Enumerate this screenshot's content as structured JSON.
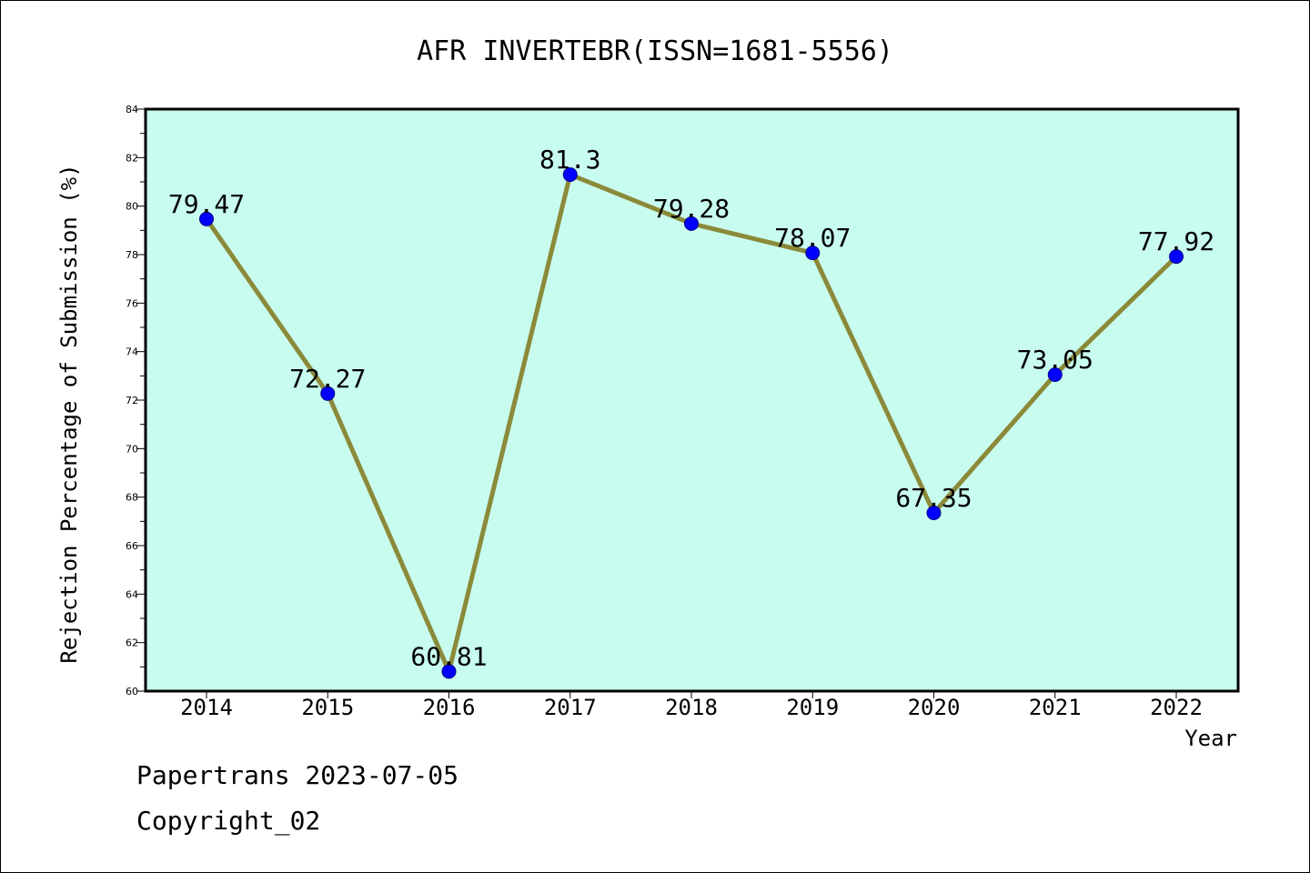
{
  "chart_data": {
    "type": "line",
    "title": "AFR INVERTEBR(ISSN=1681-5556)",
    "xlabel": "Year",
    "ylabel": "Rejection Percentage of Submission (%)",
    "categories": [
      "2014",
      "2015",
      "2016",
      "2017",
      "2018",
      "2019",
      "2020",
      "2021",
      "2022"
    ],
    "series": [
      {
        "values": [
          79.47,
          72.27,
          60.81,
          81.3,
          79.28,
          78.07,
          67.35,
          73.05,
          77.92
        ]
      }
    ],
    "data_labels": [
      "79.47",
      "72.27",
      "60.81",
      "81.3",
      "79.28",
      "78.07",
      "67.35",
      "73.05",
      "77.92"
    ],
    "ylim": [
      60,
      84
    ],
    "yticks": [
      60,
      62,
      64,
      66,
      68,
      70,
      72,
      74,
      76,
      78,
      80,
      82,
      84
    ],
    "grid": false,
    "colors": {
      "plot_background": "#c8fcee",
      "line": "#8b8a3a",
      "marker": "#0000ff",
      "marker_edge": "#00008b"
    }
  },
  "footer": {
    "watermark": "Papertrans 2023-07-05",
    "copyright": "Copyright_02"
  }
}
